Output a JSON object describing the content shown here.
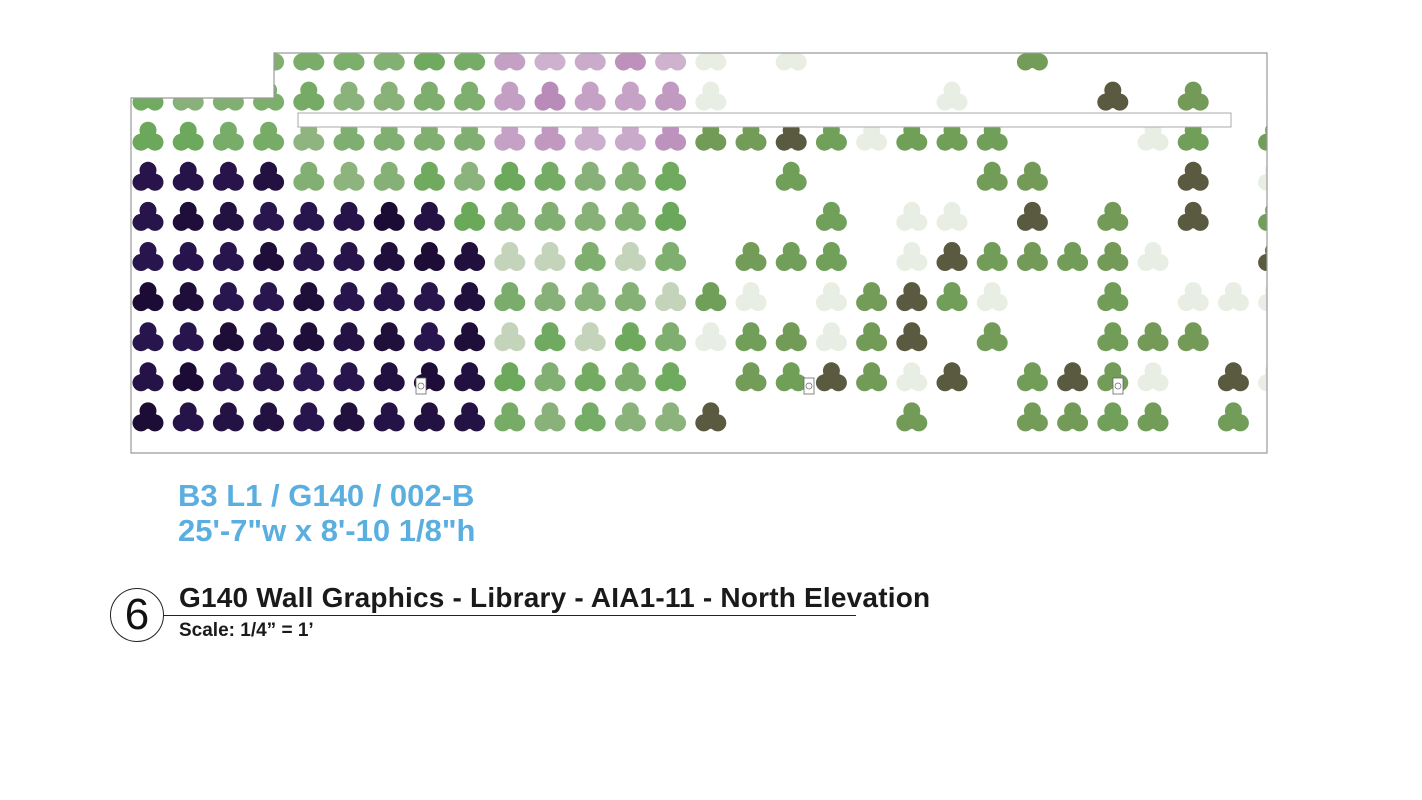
{
  "elevation": {
    "pattern": "trefoil dot grid",
    "palette": {
      "deep_purple": "#2a1650",
      "dark_purple": "#1c0c34",
      "lilac": "#b98ab8",
      "green": "#6aa85a",
      "sage": "#9bb88c",
      "olive": "#7f8a55",
      "pale": "#dfe6da"
    }
  },
  "spec": {
    "code": "B3 L1 / G140 / 002-B",
    "dimensions": "25'-7\"w x 8'-10 1/8\"h"
  },
  "callout": {
    "number": "6",
    "title": "G140 Wall Graphics - Library - AIA1-11 - North Elevation",
    "scale": "Scale: 1/4” = 1’"
  }
}
